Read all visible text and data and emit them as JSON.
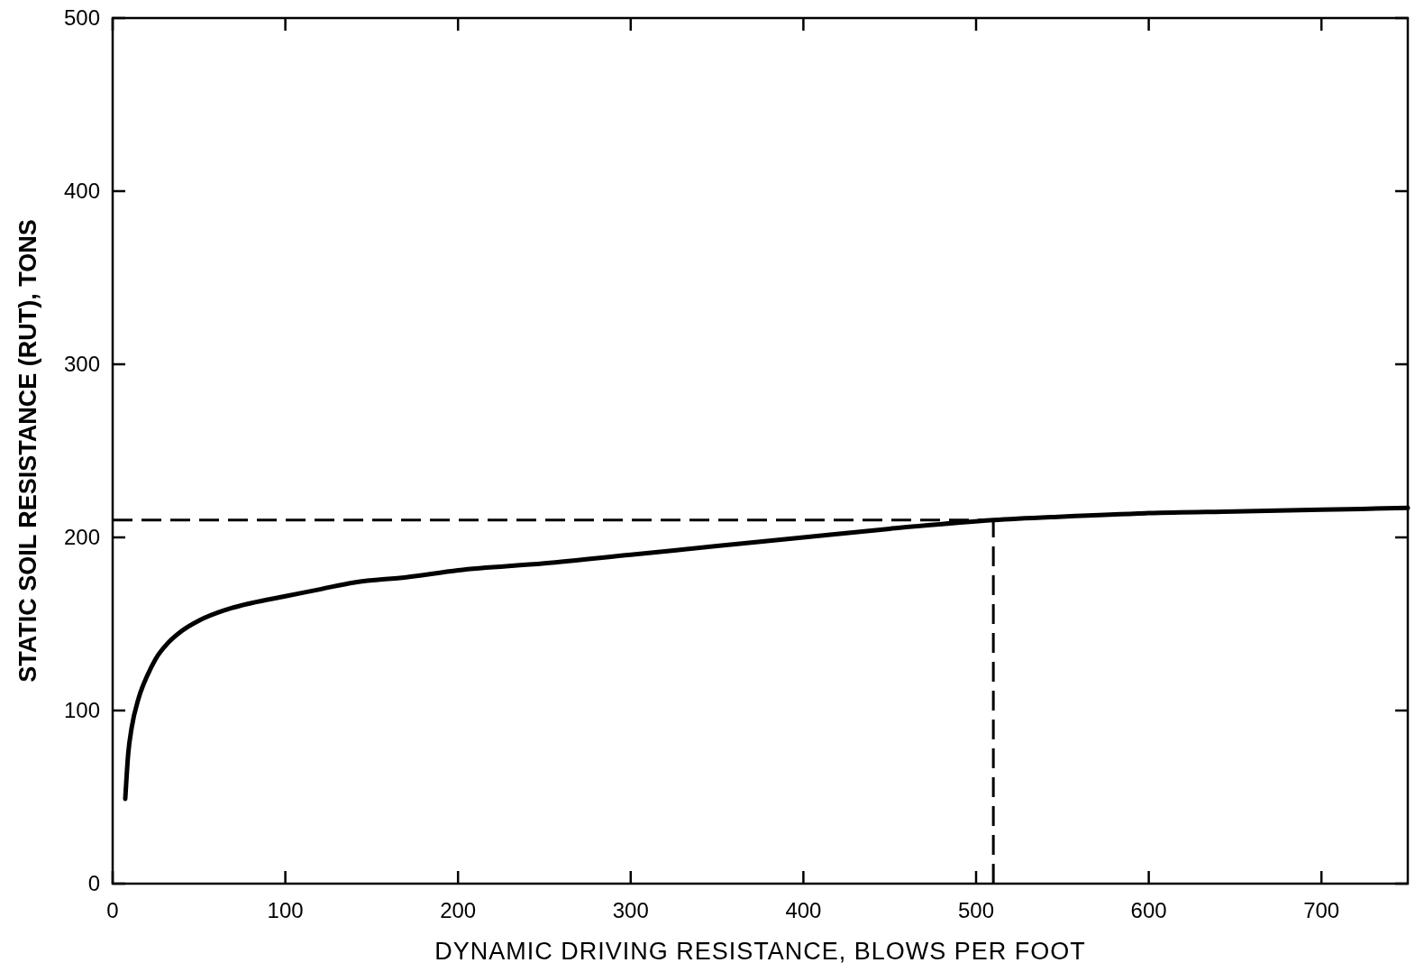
{
  "chart_data": {
    "type": "line",
    "xlabel": "DYNAMIC DRIVING RESISTANCE, BLOWS PER FOOT",
    "ylabel": "STATIC SOIL RESISTANCE (RUT), TONS",
    "xlim": [
      0,
      750
    ],
    "ylim": [
      0,
      500
    ],
    "xticks": [
      0,
      100,
      200,
      300,
      400,
      500,
      600,
      700
    ],
    "yticks": [
      0,
      100,
      200,
      300,
      400,
      500
    ],
    "grid": false,
    "marker": "none",
    "line_style": "solid",
    "series": [
      {
        "color": "#000000",
        "x": [
          7.3,
          9,
          11,
          15,
          20,
          25,
          32,
          40,
          50,
          65,
          80,
          100,
          120,
          140,
          170,
          200,
          250,
          300,
          350,
          400,
          450,
          510,
          550,
          600,
          650,
          700,
          750
        ],
        "values": [
          49,
          75,
          90,
          107,
          120,
          130,
          139,
          146,
          152,
          158,
          162,
          166,
          170,
          174,
          177,
          181,
          185,
          190,
          195,
          200,
          205,
          210,
          212,
          214,
          215,
          216,
          217
        ]
      }
    ],
    "ref_lines": [
      {
        "axis": "y",
        "value": 210,
        "line_style": "dashed",
        "color": "#000000"
      },
      {
        "axis": "x",
        "value": 510,
        "line_style": "dashed",
        "color": "#000000"
      }
    ]
  }
}
